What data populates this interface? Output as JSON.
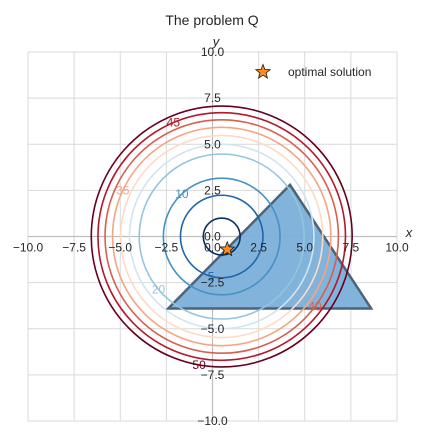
{
  "chart_data": {
    "type": "contour",
    "title": "The problem Q",
    "xlabel": "x",
    "ylabel": "y",
    "xlim": [
      -10,
      10
    ],
    "ylim": [
      -10,
      10
    ],
    "x_ticks": [
      -10.0,
      -7.5,
      -5.0,
      -2.5,
      0.0,
      2.5,
      5.0,
      7.5,
      10.0
    ],
    "y_ticks": [
      -10.0,
      -7.5,
      -5.0,
      -2.5,
      0.0,
      2.5,
      5.0,
      7.5,
      10.0
    ],
    "x_tick_labels": [
      "−10.0",
      "−7.5",
      "−5.0",
      "−2.5",
      "0.0",
      "2.5",
      "5.0",
      "7.5",
      "10.0"
    ],
    "y_tick_labels": [
      "−10.0",
      "−7.5",
      "−5.0",
      "−2.5",
      "0.0",
      "2.5",
      "5.0",
      "7.5",
      "10.0"
    ],
    "grid": true,
    "legend_position": "top-right",
    "contour_center": [
      0.5,
      0
    ],
    "contour_levels": [
      {
        "level": 1,
        "color": "#053061",
        "label": ""
      },
      {
        "level": 5,
        "color": "#2166ac",
        "label": "5"
      },
      {
        "level": 10,
        "color": "#4393c3",
        "label": "10"
      },
      {
        "level": 20,
        "color": "#92c5de",
        "label": "20"
      },
      {
        "level": 25,
        "color": "#d1e5f0",
        "label": ""
      },
      {
        "level": 30,
        "color": "#fddbc7",
        "label": ""
      },
      {
        "level": 35,
        "color": "#f4a582",
        "label": "35"
      },
      {
        "level": 40,
        "color": "#d6604d",
        "label": "40"
      },
      {
        "level": 45,
        "color": "#b2182b",
        "label": "45"
      },
      {
        "level": 50,
        "color": "#67001f",
        "label": "50"
      }
    ],
    "feasible_region": {
      "vertices": [
        [
          4.2,
          2.8
        ],
        [
          8.6,
          -3.9
        ],
        [
          -2.4,
          -3.9
        ]
      ],
      "fill": "#7bafd9",
      "stroke": "#4d6378"
    },
    "series": [
      {
        "name": "optimal solution",
        "type": "scatter",
        "marker": "star",
        "color": "#ff8c1a",
        "x": [
          0.8
        ],
        "y": [
          -0.7
        ]
      }
    ]
  }
}
